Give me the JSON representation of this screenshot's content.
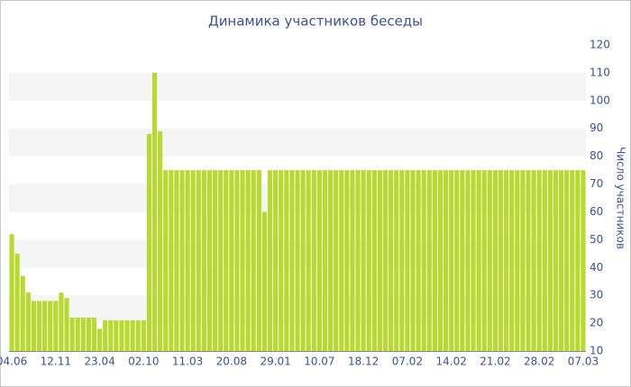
{
  "chart_data": {
    "type": "bar",
    "title": "Динамика участников беседы",
    "y_label": "Число участников",
    "categories": [
      "04.06",
      null,
      null,
      null,
      null,
      null,
      null,
      null,
      "12.11",
      null,
      null,
      null,
      null,
      null,
      null,
      null,
      "23.04",
      null,
      null,
      null,
      null,
      null,
      null,
      null,
      "02.10",
      null,
      null,
      null,
      null,
      null,
      null,
      null,
      "11.03",
      null,
      null,
      null,
      null,
      null,
      null,
      null,
      "20.08",
      null,
      null,
      null,
      null,
      null,
      null,
      null,
      "29.01",
      null,
      null,
      null,
      null,
      null,
      null,
      null,
      "10.07",
      null,
      null,
      null,
      null,
      null,
      null,
      null,
      "18.12",
      null,
      null,
      null,
      null,
      null,
      null,
      null,
      "07.02",
      null,
      null,
      null,
      null,
      null,
      null,
      null,
      "14.02",
      null,
      null,
      null,
      null,
      null,
      null,
      null,
      "21.02",
      null,
      null,
      null,
      null,
      null,
      null,
      null,
      "28.02",
      null,
      null,
      null,
      null,
      null,
      null,
      null,
      "07.03"
    ],
    "values": [
      52,
      45,
      37,
      31,
      28,
      28,
      28,
      28,
      28,
      31,
      29,
      22,
      22,
      22,
      22,
      22,
      18,
      21,
      21,
      21,
      21,
      21,
      21,
      21,
      21,
      88,
      110,
      89,
      75,
      75,
      75,
      75,
      75,
      75,
      75,
      75,
      75,
      75,
      75,
      75,
      75,
      75,
      75,
      75,
      75,
      75,
      60,
      75,
      75,
      75,
      75,
      75,
      75,
      75,
      75,
      75,
      75,
      75,
      75,
      75,
      75,
      75,
      75,
      75,
      75,
      75,
      75,
      75,
      75,
      75,
      75,
      75,
      75,
      75,
      75,
      75,
      75,
      75,
      75,
      75,
      75,
      75,
      75,
      75,
      75,
      75,
      75,
      75,
      75,
      75,
      75,
      75,
      75,
      75,
      75,
      75,
      75,
      75,
      75,
      75,
      75,
      75,
      75,
      75,
      75
    ],
    "color": "#b8d92f",
    "ylim": [
      10,
      120
    ],
    "yticks": [
      10,
      20,
      30,
      40,
      50,
      60,
      70,
      80,
      90,
      100,
      110,
      120
    ],
    "y_axis_side": "right",
    "grid": "bands"
  }
}
